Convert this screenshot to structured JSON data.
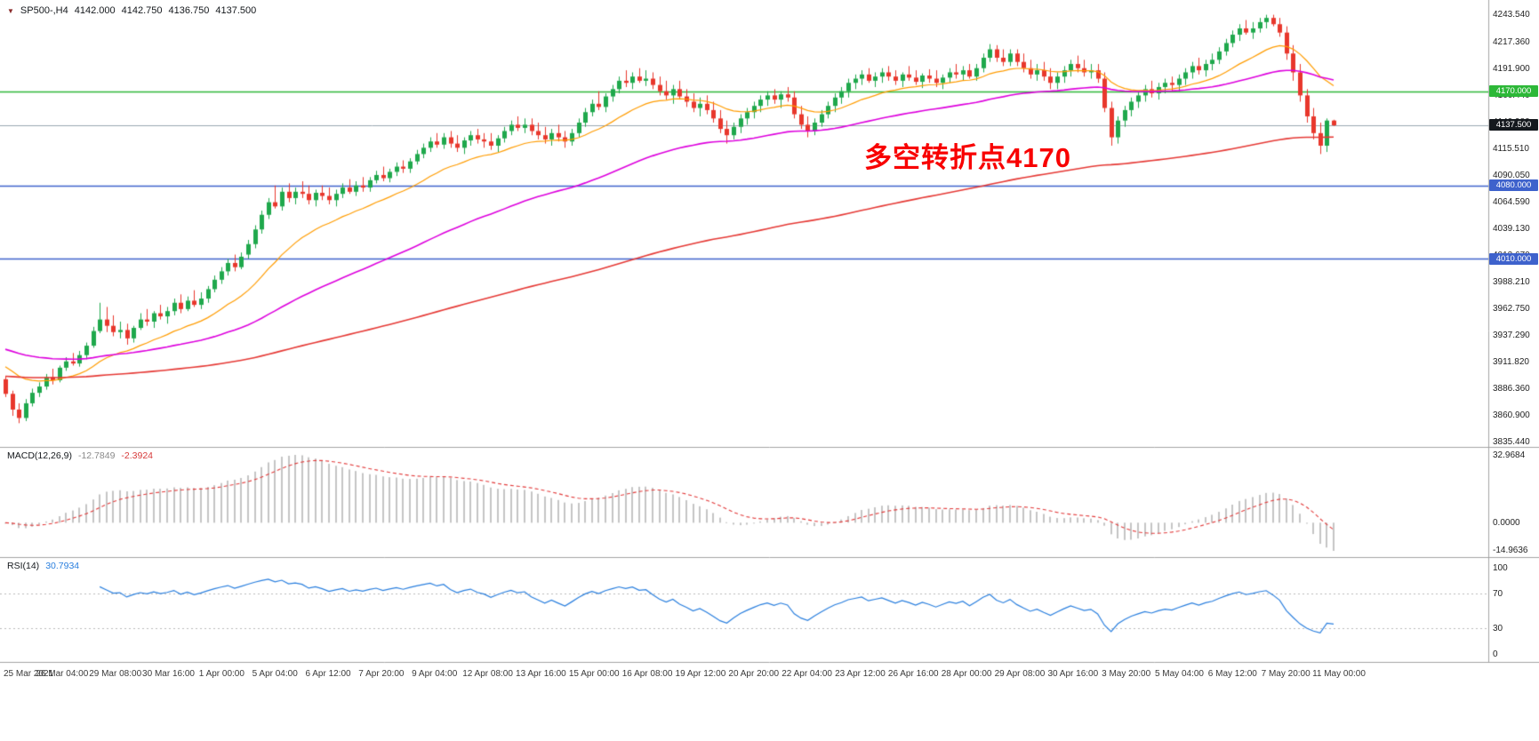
{
  "header": {
    "collapse_icon": "▼",
    "symbol": "SP500-,H4",
    "open": "4142.000",
    "high": "4142.750",
    "low": "4136.750",
    "close": "4137.500"
  },
  "annotation": {
    "text": "多空转折点4170",
    "color": "#f80000"
  },
  "macd_panel": {
    "label": "MACD(12,26,9)",
    "value_main": "-12.7849",
    "value_signal": "-2.3924",
    "axis_labels": [
      "32.9684",
      "0.0000",
      "-14.9636"
    ],
    "hist_color": "#c4c4c4",
    "signal_color": "#e23a3a"
  },
  "rsi_panel": {
    "label": "RSI(14)",
    "value": "30.7934",
    "axis_labels": [
      "100",
      "70",
      "30",
      "0"
    ],
    "levels": [
      70,
      30
    ],
    "line_color": "#2a7fde"
  },
  "chart_data": {
    "type": "candlestick",
    "title": "SP500-,H4",
    "symbol": "SP500-",
    "timeframe": "H4",
    "ohlc_current": {
      "open": 4142.0,
      "high": 4142.75,
      "low": 4136.75,
      "close": 4137.5
    },
    "ylim": [
      3835.44,
      4243.54
    ],
    "up_color": "#1fa84c",
    "down_color": "#e8372c",
    "y_ticks": [
      "4243.540",
      "4217.360",
      "4191.900",
      "4166.440",
      "4140.980",
      "4115.510",
      "4090.050",
      "4064.590",
      "4039.130",
      "4013.670",
      "3988.210",
      "3962.750",
      "3937.290",
      "3911.820",
      "3886.360",
      "3860.900",
      "3835.440"
    ],
    "levels": [
      {
        "price": 4170.0,
        "label": "4170.000",
        "line_color": "#2db838",
        "badge_bg": "#2db838",
        "width": 1.4
      },
      {
        "price": 4137.5,
        "label": "4137.500",
        "line_color": "#9aa7b0",
        "badge_bg": "#14181d",
        "width": 1
      },
      {
        "price": 4080.0,
        "label": "4080.000",
        "line_color": "#3e62cc",
        "badge_bg": "#3e62cc",
        "width": 1.6
      },
      {
        "price": 4010.0,
        "label": "4010.000",
        "line_color": "#3e62cc",
        "badge_bg": "#3e62cc",
        "width": 1.6
      }
    ],
    "moving_averages": [
      {
        "name": "ma-fast",
        "period": 18,
        "seed": 3910,
        "color": "#ff9c00",
        "line_width": 1.2
      },
      {
        "name": "ma-mid",
        "period": 60,
        "seed": 3925,
        "color": "#dd00dd",
        "line_width": 1.6
      },
      {
        "name": "ma-slow",
        "period": 180,
        "seed": 3898,
        "color": "#e53935",
        "line_width": 1.6
      }
    ],
    "time_labels": [
      "25 Mar 2021",
      "26 Mar 04:00",
      "29 Mar 08:00",
      "30 Mar 16:00",
      "1 Apr 00:00",
      "5 Apr 04:00",
      "6 Apr 12:00",
      "7 Apr 20:00",
      "9 Apr 04:00",
      "12 Apr 08:00",
      "13 Apr 16:00",
      "15 Apr 00:00",
      "16 Apr 08:00",
      "19 Apr 12:00",
      "20 Apr 20:00",
      "22 Apr 04:00",
      "23 Apr 12:00",
      "26 Apr 16:00",
      "28 Apr 00:00",
      "29 Apr 08:00",
      "30 Apr 16:00",
      "3 May 20:00",
      "5 May 04:00",
      "6 May 12:00",
      "7 May 20:00",
      "11 May 00:00"
    ],
    "candles": [
      [
        3895,
        3898,
        3878,
        3881
      ],
      [
        3881,
        3884,
        3860,
        3866
      ],
      [
        3866,
        3872,
        3853,
        3858
      ],
      [
        3858,
        3876,
        3855,
        3872
      ],
      [
        3872,
        3886,
        3869,
        3882
      ],
      [
        3882,
        3892,
        3878,
        3888
      ],
      [
        3888,
        3900,
        3885,
        3897
      ],
      [
        3897,
        3905,
        3890,
        3894
      ],
      [
        3894,
        3908,
        3892,
        3906
      ],
      [
        3906,
        3916,
        3903,
        3912
      ],
      [
        3912,
        3920,
        3908,
        3910
      ],
      [
        3910,
        3922,
        3907,
        3918
      ],
      [
        3918,
        3930,
        3914,
        3927
      ],
      [
        3927,
        3945,
        3925,
        3941
      ],
      [
        3941,
        3968,
        3939,
        3952
      ],
      [
        3952,
        3964,
        3940,
        3946
      ],
      [
        3946,
        3956,
        3936,
        3940
      ],
      [
        3940,
        3950,
        3934,
        3942
      ],
      [
        3942,
        3948,
        3928,
        3934
      ],
      [
        3934,
        3946,
        3930,
        3944
      ],
      [
        3944,
        3958,
        3942,
        3952
      ],
      [
        3952,
        3962,
        3946,
        3950
      ],
      [
        3950,
        3960,
        3944,
        3958
      ],
      [
        3958,
        3966,
        3952,
        3955
      ],
      [
        3955,
        3964,
        3948,
        3960
      ],
      [
        3960,
        3972,
        3956,
        3968
      ],
      [
        3968,
        3976,
        3958,
        3962
      ],
      [
        3962,
        3974,
        3960,
        3970
      ],
      [
        3970,
        3980,
        3964,
        3966
      ],
      [
        3966,
        3978,
        3962,
        3972
      ],
      [
        3972,
        3984,
        3968,
        3981
      ],
      [
        3981,
        3994,
        3978,
        3990
      ],
      [
        3990,
        4002,
        3986,
        3998
      ],
      [
        3998,
        4010,
        3994,
        4006
      ],
      [
        4006,
        4014,
        3998,
        4002
      ],
      [
        4002,
        4016,
        4000,
        4012
      ],
      [
        4014,
        4028,
        4010,
        4024
      ],
      [
        4024,
        4042,
        4020,
        4038
      ],
      [
        4038,
        4056,
        4034,
        4052
      ],
      [
        4052,
        4068,
        4048,
        4064
      ],
      [
        4064,
        4080,
        4058,
        4060
      ],
      [
        4060,
        4078,
        4056,
        4074
      ],
      [
        4074,
        4082,
        4064,
        4068
      ],
      [
        4068,
        4078,
        4062,
        4074
      ],
      [
        4074,
        4084,
        4068,
        4072
      ],
      [
        4072,
        4080,
        4062,
        4066
      ],
      [
        4066,
        4076,
        4060,
        4073
      ],
      [
        4073,
        4080,
        4066,
        4070
      ],
      [
        4070,
        4078,
        4062,
        4066
      ],
      [
        4066,
        4076,
        4060,
        4072
      ],
      [
        4072,
        4082,
        4068,
        4078
      ],
      [
        4078,
        4086,
        4072,
        4074
      ],
      [
        4074,
        4084,
        4070,
        4080
      ],
      [
        4080,
        4088,
        4074,
        4078
      ],
      [
        4078,
        4088,
        4074,
        4085
      ],
      [
        4085,
        4094,
        4082,
        4090
      ],
      [
        4090,
        4098,
        4084,
        4087
      ],
      [
        4087,
        4096,
        4083,
        4093
      ],
      [
        4093,
        4102,
        4089,
        4098
      ],
      [
        4098,
        4104,
        4092,
        4096
      ],
      [
        4096,
        4106,
        4092,
        4103
      ],
      [
        4103,
        4114,
        4100,
        4110
      ],
      [
        4110,
        4120,
        4106,
        4116
      ],
      [
        4116,
        4126,
        4112,
        4122
      ],
      [
        4122,
        4130,
        4116,
        4119
      ],
      [
        4119,
        4130,
        4115,
        4126
      ],
      [
        4126,
        4132,
        4116,
        4120
      ],
      [
        4120,
        4128,
        4112,
        4116
      ],
      [
        4116,
        4126,
        4110,
        4123
      ],
      [
        4123,
        4132,
        4118,
        4128
      ],
      [
        4128,
        4134,
        4120,
        4124
      ],
      [
        4124,
        4130,
        4116,
        4122
      ],
      [
        4122,
        4130,
        4114,
        4118
      ],
      [
        4118,
        4128,
        4112,
        4125
      ],
      [
        4125,
        4136,
        4121,
        4132
      ],
      [
        4132,
        4142,
        4128,
        4138
      ],
      [
        4138,
        4146,
        4132,
        4135
      ],
      [
        4135,
        4144,
        4130,
        4138
      ],
      [
        4138,
        4144,
        4128,
        4132
      ],
      [
        4132,
        4140,
        4124,
        4128
      ],
      [
        4128,
        4136,
        4120,
        4124
      ],
      [
        4124,
        4134,
        4118,
        4130
      ],
      [
        4130,
        4138,
        4122,
        4126
      ],
      [
        4126,
        4132,
        4116,
        4122
      ],
      [
        4122,
        4134,
        4118,
        4130
      ],
      [
        4130,
        4144,
        4126,
        4140
      ],
      [
        4140,
        4154,
        4136,
        4150
      ],
      [
        4150,
        4162,
        4146,
        4158
      ],
      [
        4158,
        4170,
        4152,
        4155
      ],
      [
        4155,
        4168,
        4150,
        4165
      ],
      [
        4165,
        4176,
        4160,
        4172
      ],
      [
        4172,
        4184,
        4168,
        4180
      ],
      [
        4180,
        4190,
        4174,
        4178
      ],
      [
        4178,
        4188,
        4172,
        4184
      ],
      [
        4184,
        4192,
        4178,
        4180
      ],
      [
        4180,
        4190,
        4175,
        4182
      ],
      [
        4182,
        4188,
        4172,
        4176
      ],
      [
        4176,
        4184,
        4166,
        4170
      ],
      [
        4170,
        4180,
        4162,
        4166
      ],
      [
        4166,
        4176,
        4158,
        4172
      ],
      [
        4172,
        4180,
        4162,
        4165
      ],
      [
        4165,
        4172,
        4155,
        4160
      ],
      [
        4160,
        4168,
        4150,
        4154
      ],
      [
        4154,
        4164,
        4146,
        4158
      ],
      [
        4158,
        4166,
        4148,
        4152
      ],
      [
        4152,
        4160,
        4140,
        4144
      ],
      [
        4144,
        4152,
        4130,
        4134
      ],
      [
        4134,
        4142,
        4120,
        4128
      ],
      [
        4128,
        4140,
        4124,
        4136
      ],
      [
        4136,
        4148,
        4130,
        4144
      ],
      [
        4144,
        4154,
        4138,
        4150
      ],
      [
        4150,
        4160,
        4144,
        4156
      ],
      [
        4156,
        4166,
        4150,
        4162
      ],
      [
        4162,
        4170,
        4156,
        4166
      ],
      [
        4166,
        4172,
        4158,
        4162
      ],
      [
        4162,
        4170,
        4154,
        4167
      ],
      [
        4167,
        4174,
        4160,
        4164
      ],
      [
        4164,
        4170,
        4144,
        4148
      ],
      [
        4148,
        4156,
        4134,
        4138
      ],
      [
        4138,
        4146,
        4126,
        4132
      ],
      [
        4132,
        4144,
        4128,
        4140
      ],
      [
        4140,
        4152,
        4136,
        4148
      ],
      [
        4148,
        4160,
        4144,
        4156
      ],
      [
        4156,
        4168,
        4150,
        4164
      ],
      [
        4164,
        4174,
        4158,
        4170
      ],
      [
        4170,
        4182,
        4164,
        4178
      ],
      [
        4178,
        4186,
        4172,
        4182
      ],
      [
        4182,
        4190,
        4176,
        4186
      ],
      [
        4186,
        4192,
        4178,
        4180
      ],
      [
        4180,
        4188,
        4174,
        4184
      ],
      [
        4184,
        4192,
        4178,
        4188
      ],
      [
        4188,
        4194,
        4180,
        4184
      ],
      [
        4184,
        4190,
        4176,
        4180
      ],
      [
        4180,
        4188,
        4174,
        4186
      ],
      [
        4186,
        4194,
        4180,
        4183
      ],
      [
        4183,
        4190,
        4176,
        4179
      ],
      [
        4179,
        4187,
        4173,
        4185
      ],
      [
        4185,
        4191,
        4178,
        4182
      ],
      [
        4182,
        4190,
        4174,
        4178
      ],
      [
        4178,
        4186,
        4172,
        4183
      ],
      [
        4183,
        4192,
        4178,
        4188
      ],
      [
        4188,
        4196,
        4182,
        4186
      ],
      [
        4186,
        4194,
        4180,
        4190
      ],
      [
        4190,
        4196,
        4182,
        4184
      ],
      [
        4184,
        4196,
        4180,
        4192
      ],
      [
        4192,
        4206,
        4188,
        4202
      ],
      [
        4202,
        4215,
        4198,
        4210
      ],
      [
        4210,
        4214,
        4198,
        4202
      ],
      [
        4202,
        4210,
        4194,
        4198
      ],
      [
        4198,
        4210,
        4194,
        4206
      ],
      [
        4206,
        4210,
        4194,
        4198
      ],
      [
        4198,
        4206,
        4188,
        4192
      ],
      [
        4192,
        4200,
        4182,
        4186
      ],
      [
        4186,
        4196,
        4180,
        4190
      ],
      [
        4190,
        4198,
        4180,
        4184
      ],
      [
        4184,
        4192,
        4172,
        4178
      ],
      [
        4178,
        4188,
        4172,
        4184
      ],
      [
        4184,
        4194,
        4178,
        4190
      ],
      [
        4190,
        4200,
        4184,
        4196
      ],
      [
        4196,
        4204,
        4188,
        4192
      ],
      [
        4192,
        4200,
        4184,
        4188
      ],
      [
        4188,
        4196,
        4182,
        4190
      ],
      [
        4190,
        4196,
        4178,
        4182
      ],
      [
        4182,
        4188,
        4150,
        4154
      ],
      [
        4154,
        4160,
        4118,
        4126
      ],
      [
        4126,
        4146,
        4120,
        4142
      ],
      [
        4142,
        4156,
        4136,
        4152
      ],
      [
        4152,
        4164,
        4146,
        4160
      ],
      [
        4160,
        4170,
        4154,
        4166
      ],
      [
        4166,
        4176,
        4160,
        4172
      ],
      [
        4172,
        4180,
        4164,
        4168
      ],
      [
        4168,
        4178,
        4162,
        4174
      ],
      [
        4174,
        4182,
        4168,
        4178
      ],
      [
        4178,
        4184,
        4170,
        4176
      ],
      [
        4176,
        4186,
        4170,
        4182
      ],
      [
        4182,
        4192,
        4176,
        4188
      ],
      [
        4188,
        4198,
        4182,
        4194
      ],
      [
        4194,
        4202,
        4186,
        4190
      ],
      [
        4190,
        4200,
        4184,
        4196
      ],
      [
        4196,
        4206,
        4190,
        4200
      ],
      [
        4200,
        4212,
        4196,
        4208
      ],
      [
        4208,
        4220,
        4204,
        4216
      ],
      [
        4216,
        4228,
        4212,
        4224
      ],
      [
        4224,
        4234,
        4218,
        4230
      ],
      [
        4230,
        4238,
        4224,
        4226
      ],
      [
        4226,
        4236,
        4220,
        4230
      ],
      [
        4230,
        4240,
        4226,
        4236
      ],
      [
        4236,
        4243,
        4230,
        4240
      ],
      [
        4240,
        4243,
        4232,
        4234
      ],
      [
        4234,
        4240,
        4222,
        4226
      ],
      [
        4226,
        4232,
        4200,
        4206
      ],
      [
        4206,
        4214,
        4180,
        4188
      ],
      [
        4188,
        4196,
        4160,
        4166
      ],
      [
        4166,
        4172,
        4140,
        4146
      ],
      [
        4146,
        4154,
        4124,
        4130
      ],
      [
        4130,
        4140,
        4110,
        4118
      ],
      [
        4118,
        4144,
        4112,
        4142
      ],
      [
        4142,
        4142.75,
        4136.75,
        4137.5
      ]
    ]
  }
}
